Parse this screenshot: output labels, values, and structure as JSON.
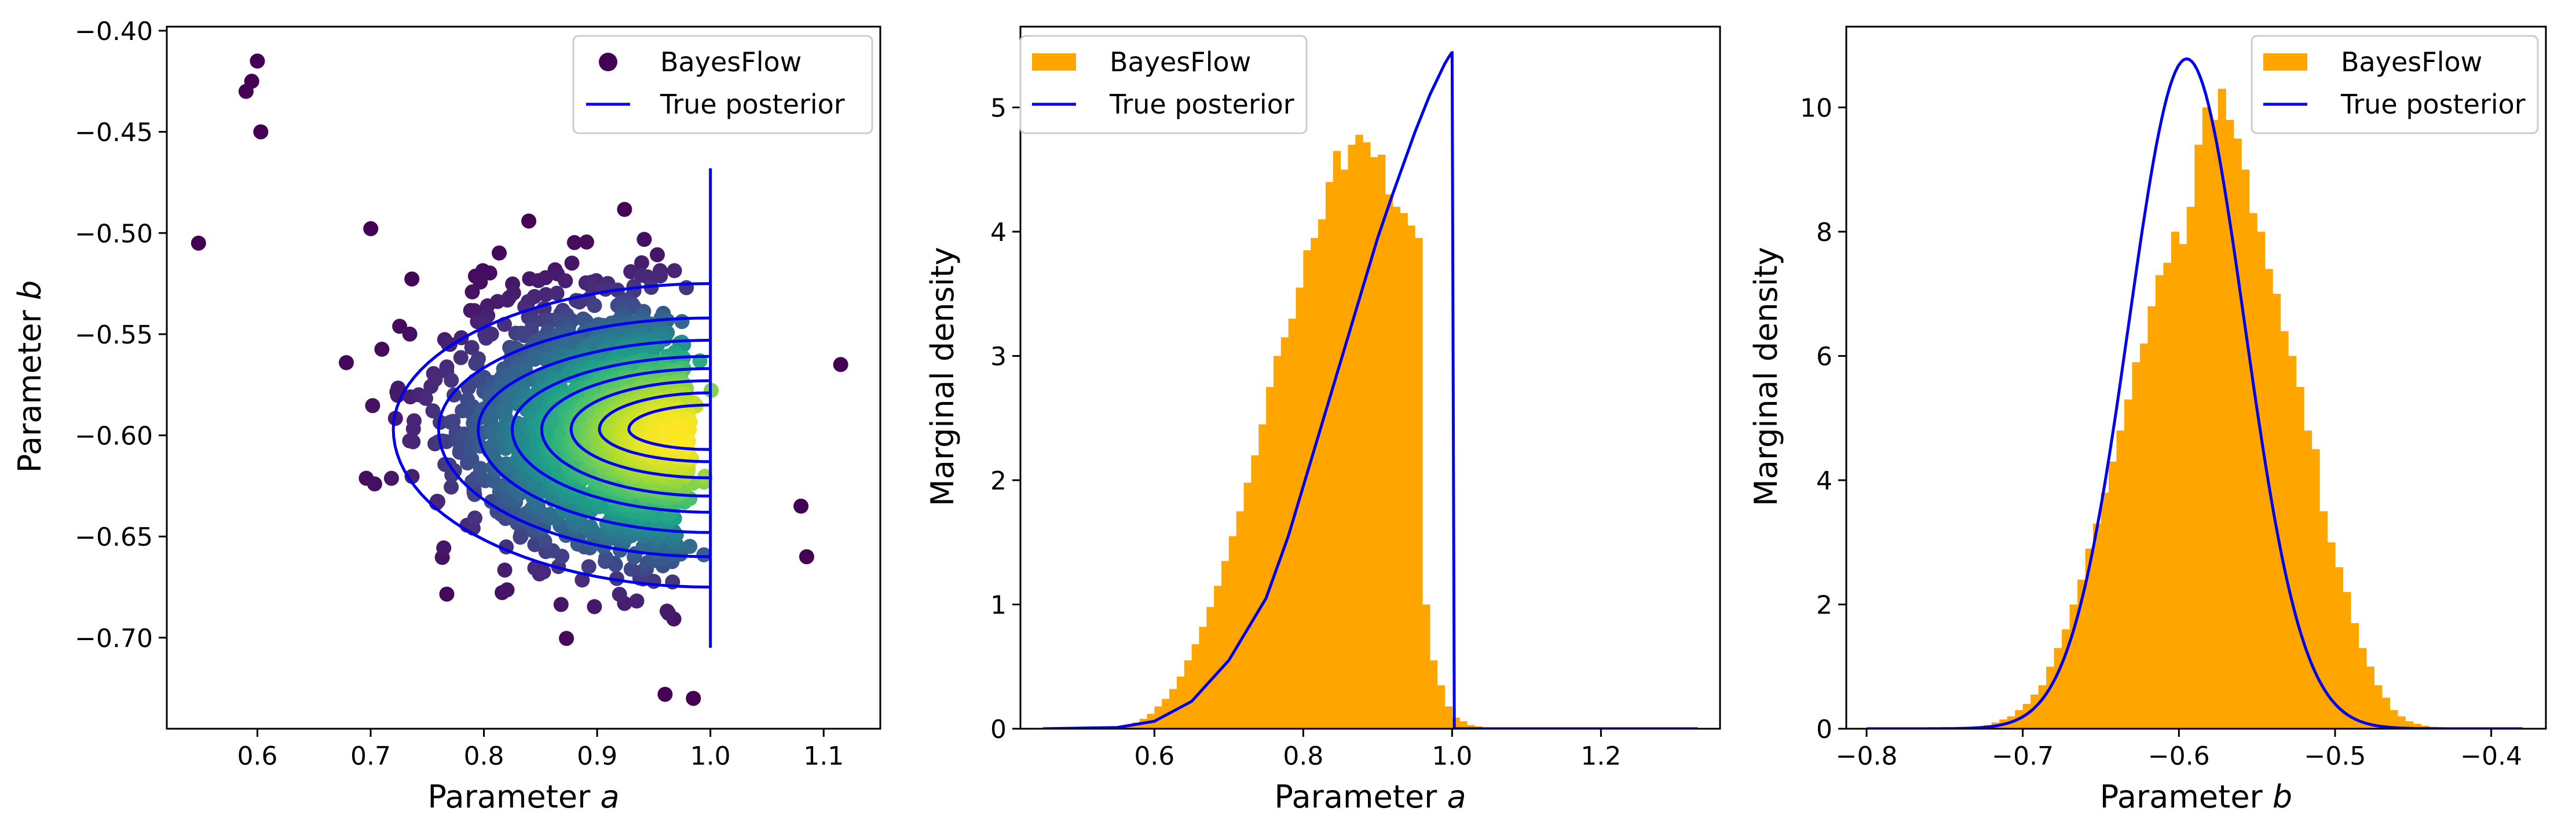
{
  "chart_data": [
    {
      "type": "scatter",
      "xlabel_prefix": "Parameter ",
      "xlabel_var": "a",
      "ylabel_prefix": "Parameter ",
      "ylabel_var": "b",
      "xlim": [
        0.52,
        1.15
      ],
      "ylim": [
        -0.745,
        -0.398
      ],
      "xticks": [
        0.6,
        0.7,
        0.8,
        0.9,
        1.0,
        1.1
      ],
      "xtick_labels": [
        "0.6",
        "0.7",
        "0.8",
        "0.9",
        "1.0",
        "1.1"
      ],
      "yticks": [
        -0.7,
        -0.65,
        -0.6,
        -0.55,
        -0.5,
        -0.45,
        -0.4
      ],
      "ytick_labels": [
        "−0.70",
        "−0.65",
        "−0.60",
        "−0.55",
        "−0.50",
        "−0.45",
        "−0.40"
      ],
      "legend": {
        "location": "top-right",
        "entries": [
          "BayesFlow",
          "True posterior"
        ]
      },
      "grid": false,
      "colors": {
        "scatter_colormap": "viridis",
        "true_posterior": "#0000ee"
      },
      "bayesflow_samples": {
        "distribution": "left-skewed in a, truncated at a = 1.0, density-colored (viridis)",
        "mode": [
          0.97,
          -0.6
        ],
        "a_mean": 0.89,
        "a_sd": 0.075,
        "b_mean": -0.595,
        "b_sd": 0.035,
        "b_vs_a_slope": -0.06,
        "outliers": [
          [
            0.548,
            -0.505
          ],
          [
            0.6,
            -0.415
          ],
          [
            0.595,
            -0.425
          ],
          [
            0.59,
            -0.43
          ],
          [
            0.603,
            -0.45
          ],
          [
            1.115,
            -0.565
          ],
          [
            1.085,
            -0.66
          ],
          [
            1.08,
            -0.635
          ],
          [
            0.96,
            -0.728
          ],
          [
            0.985,
            -0.73
          ]
        ]
      },
      "true_posterior_contours": {
        "a_max": 1.0,
        "mode": [
          0.985,
          -0.597
        ],
        "levels": [
          {
            "a_min": 0.72,
            "b_top": -0.525,
            "b_bottom": -0.675
          },
          {
            "a_min": 0.76,
            "b_top": -0.542,
            "b_bottom": -0.66
          },
          {
            "a_min": 0.795,
            "b_top": -0.553,
            "b_bottom": -0.648
          },
          {
            "a_min": 0.825,
            "b_top": -0.561,
            "b_bottom": -0.638
          },
          {
            "a_min": 0.851,
            "b_top": -0.567,
            "b_bottom": -0.63
          },
          {
            "a_min": 0.877,
            "b_top": -0.573,
            "b_bottom": -0.621
          },
          {
            "a_min": 0.902,
            "b_top": -0.579,
            "b_bottom": -0.613
          },
          {
            "a_min": 0.928,
            "b_top": -0.585,
            "b_bottom": -0.607
          }
        ],
        "vertical_line": {
          "a": 1.0,
          "b_from": -0.705,
          "b_to": -0.468
        }
      }
    },
    {
      "type": "histogram",
      "xlabel_prefix": "Parameter ",
      "xlabel_var": "a",
      "ylabel": "Marginal density",
      "xlim": [
        0.42,
        1.36
      ],
      "ylim": [
        0,
        5.65
      ],
      "xticks": [
        0.6,
        0.8,
        1.0,
        1.2
      ],
      "xtick_labels": [
        "0.6",
        "0.8",
        "1.0",
        "1.2"
      ],
      "yticks": [
        0,
        1,
        2,
        3,
        4,
        5
      ],
      "ytick_labels": [
        "0",
        "1",
        "2",
        "3",
        "4",
        "5"
      ],
      "legend": {
        "location": "top-left",
        "entries": [
          "BayesFlow",
          "True posterior"
        ]
      },
      "grid": false,
      "colors": {
        "bayesflow": "#ffa500",
        "true_posterior": "#0000ee"
      },
      "bins": {
        "x_start": 0.56,
        "bin_width": 0.01,
        "densities": [
          0.03,
          0.05,
          0.08,
          0.12,
          0.18,
          0.24,
          0.32,
          0.42,
          0.55,
          0.68,
          0.82,
          0.98,
          1.15,
          1.35,
          1.55,
          1.75,
          1.98,
          2.2,
          2.45,
          2.75,
          3.0,
          3.15,
          3.3,
          3.55,
          3.85,
          3.95,
          4.1,
          4.4,
          4.65,
          4.5,
          4.7,
          4.78,
          4.72,
          4.6,
          4.62,
          4.3,
          4.2,
          4.15,
          4.05,
          3.95,
          1.0,
          0.55,
          0.35,
          0.18,
          0.09,
          0.06,
          0.03,
          0.02,
          0.01,
          0.005,
          0.002
        ]
      },
      "true_posterior_curve": {
        "x": [
          0.45,
          0.55,
          0.6,
          0.65,
          0.7,
          0.75,
          0.78,
          0.8,
          0.82,
          0.85,
          0.88,
          0.9,
          0.92,
          0.95,
          0.97,
          0.99,
          0.995,
          0.9995,
          1.0,
          1.003,
          1.05,
          1.2,
          1.33
        ],
        "y": [
          0.0,
          0.01,
          0.06,
          0.22,
          0.55,
          1.05,
          1.55,
          1.95,
          2.35,
          2.95,
          3.55,
          3.95,
          4.3,
          4.8,
          5.1,
          5.35,
          5.4,
          5.44,
          5.44,
          0.0,
          0.0,
          0.0,
          0.0
        ]
      }
    },
    {
      "type": "histogram",
      "xlabel_prefix": "Parameter ",
      "xlabel_var": "b",
      "ylabel": "Marginal density",
      "xlim": [
        -0.813,
        -0.365
      ],
      "ylim": [
        0,
        11.3
      ],
      "xticks": [
        -0.8,
        -0.7,
        -0.6,
        -0.5,
        -0.4
      ],
      "xtick_labels": [
        "−0.8",
        "−0.7",
        "−0.6",
        "−0.5",
        "−0.4"
      ],
      "yticks": [
        0,
        2,
        4,
        6,
        8,
        10
      ],
      "ytick_labels": [
        "0",
        "2",
        "4",
        "6",
        "8",
        "10"
      ],
      "legend": {
        "location": "top-right",
        "entries": [
          "BayesFlow",
          "True posterior"
        ]
      },
      "grid": false,
      "colors": {
        "bayesflow": "#ffa500",
        "true_posterior": "#0000ee"
      },
      "bins": {
        "x_start": -0.735,
        "bin_width": 0.005,
        "densities": [
          0.02,
          0.04,
          0.06,
          0.1,
          0.15,
          0.2,
          0.3,
          0.4,
          0.55,
          0.7,
          1.0,
          1.3,
          1.6,
          2.0,
          2.4,
          2.9,
          3.3,
          3.8,
          4.3,
          4.8,
          5.3,
          5.9,
          6.2,
          6.8,
          7.3,
          7.5,
          8.0,
          7.8,
          8.4,
          9.4,
          10.0,
          9.8,
          10.3,
          9.8,
          9.5,
          9.0,
          8.3,
          8.0,
          7.4,
          7.0,
          6.4,
          6.0,
          5.5,
          4.8,
          4.5,
          3.5,
          3.0,
          2.6,
          2.2,
          1.7,
          1.3,
          1.0,
          0.7,
          0.5,
          0.3,
          0.2,
          0.12,
          0.08,
          0.05,
          0.03
        ]
      },
      "true_posterior_curve": {
        "distribution": "normal",
        "mean": -0.595,
        "sd": 0.037,
        "x_from": -0.8,
        "x_to": -0.38
      }
    }
  ]
}
